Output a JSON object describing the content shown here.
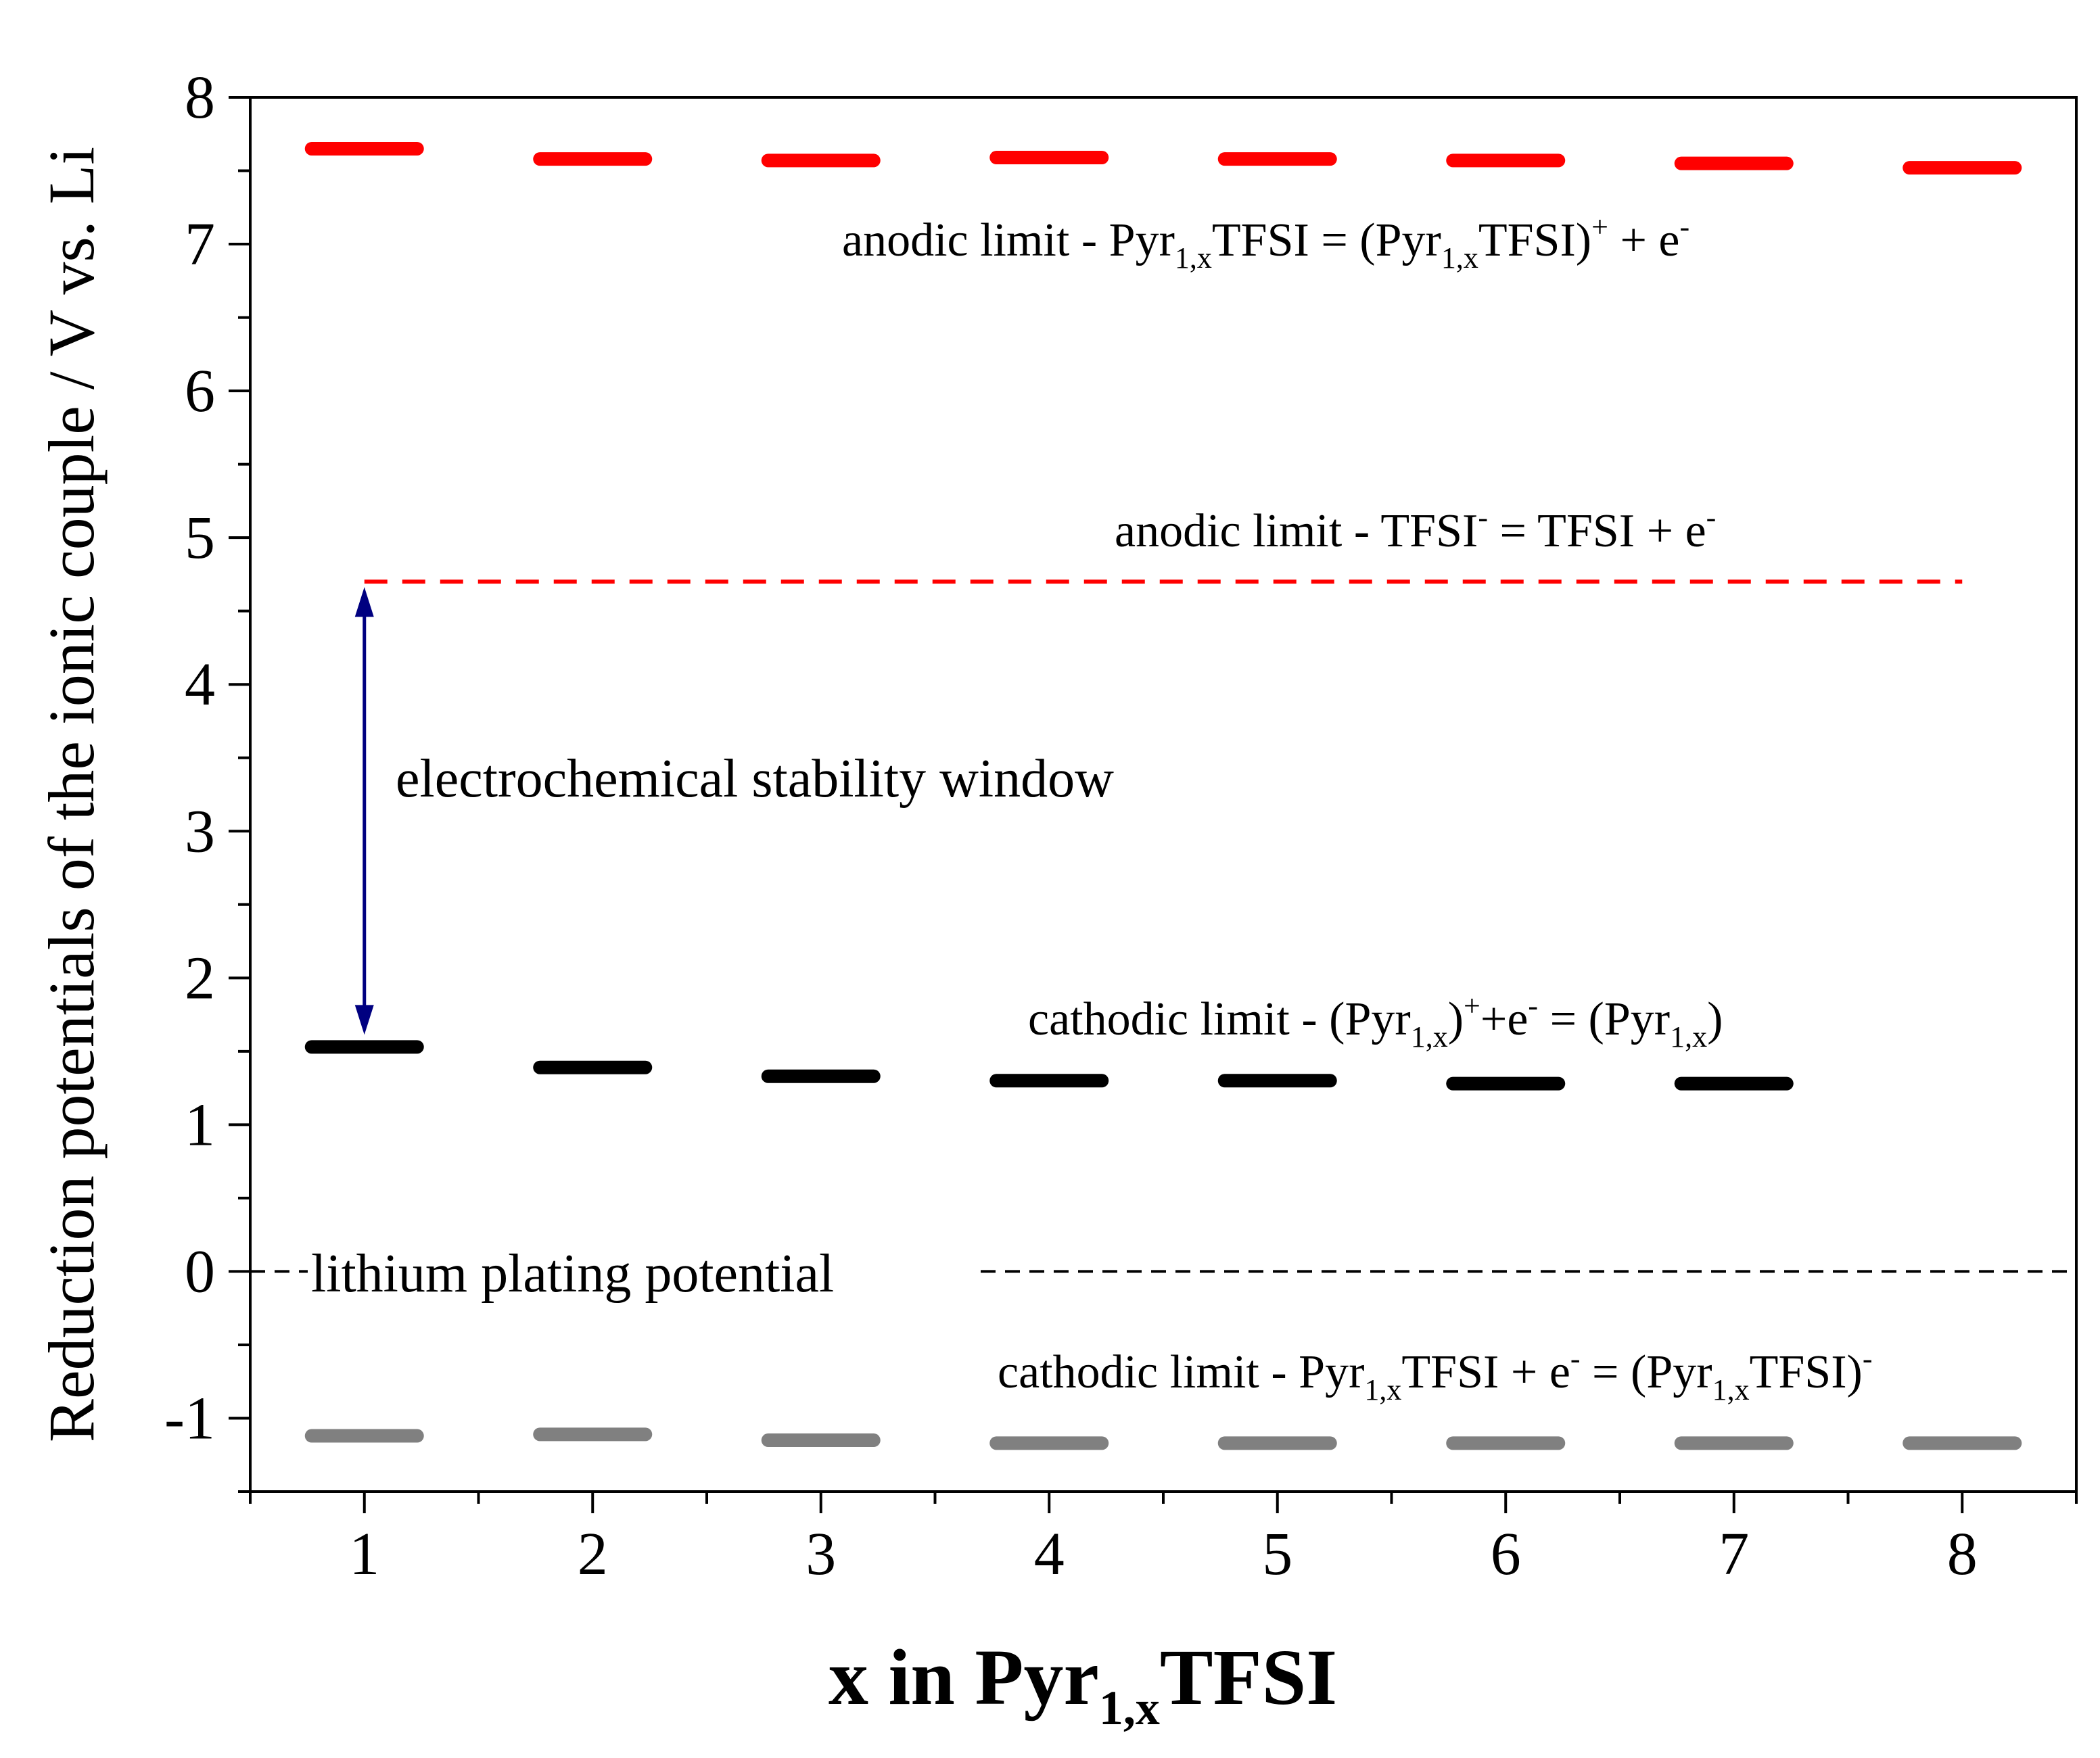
{
  "chart_data": {
    "type": "scatter",
    "marker": "horizontal-dash",
    "x_values": [
      1,
      2,
      3,
      4,
      5,
      6,
      7,
      8
    ],
    "xlim": [
      0.5,
      8.5
    ],
    "ylim": [
      -1.5,
      8
    ],
    "x_ticks": [
      "1",
      "2",
      "3",
      "4",
      "5",
      "6",
      "7",
      "8"
    ],
    "y_ticks": [
      "-1",
      "0",
      "1",
      "2",
      "3",
      "4",
      "5",
      "6",
      "7",
      "8"
    ],
    "xlabel": {
      "pre": "x in Pyr",
      "sub": "1,x",
      "post": "TFSI"
    },
    "ylabel": "Reduction potentials of the ionic couple  / V vs. Li",
    "series": [
      {
        "name": "anodic limit Pyr1,xTFSI",
        "color": "#ff0000",
        "x": [
          1,
          2,
          3,
          4,
          5,
          6,
          7,
          8
        ],
        "values": [
          7.65,
          7.58,
          7.57,
          7.59,
          7.58,
          7.57,
          7.55,
          7.52
        ]
      },
      {
        "name": "cathodic limit (Pyr1,x)+",
        "color": "#000000",
        "x": [
          1,
          2,
          3,
          4,
          5,
          6,
          7
        ],
        "values": [
          1.53,
          1.39,
          1.33,
          1.3,
          1.3,
          1.28,
          1.28
        ]
      },
      {
        "name": "cathodic limit Pyr1,xTFSI",
        "color": "#808080",
        "x": [
          1,
          2,
          3,
          4,
          5,
          6,
          7,
          8
        ],
        "values": [
          -1.12,
          -1.11,
          -1.15,
          -1.17,
          -1.17,
          -1.17,
          -1.17,
          -1.17
        ]
      }
    ],
    "reference_lines": [
      {
        "name": "anodic limit TFSI-",
        "value": 4.7,
        "x_range": [
          1,
          8
        ],
        "color": "#ff0000",
        "style": "dashed"
      },
      {
        "name": "lithium plating potential",
        "value": 0,
        "x_range": [
          0.5,
          8.5
        ],
        "color": "#000000",
        "style": "dashed"
      }
    ],
    "window_arrow": {
      "x": 1,
      "from": 1.53,
      "to": 4.7,
      "color": "#000080"
    },
    "annotations": {
      "anodic_pyr": {
        "a": "anodic limit - Pyr",
        "b": "1,x",
        "c": "TFSI = (Pyr",
        "d": "1,x",
        "e": "TFSI)",
        "f": "+",
        "g": " + e",
        "h": "-"
      },
      "anodic_tfsi": {
        "a": "anodic limit - TFSI",
        "b": "-",
        "c": " = TFSI + e",
        "d": "-"
      },
      "window": "electrochemical stability window",
      "cathodic_pyr": {
        "a": "cathodic limit - (Pyr",
        "b": "1,x",
        "c": ")",
        "d": "+",
        "e": "+e",
        "f": "-",
        "g": " = (Pyr",
        "h": "1,x",
        "i": ")"
      },
      "plating": "lithium plating potential",
      "cathodic_pyrtfsi": {
        "a": "cathodic limit - Pyr",
        "b": "1,x",
        "c": "TFSI + e",
        "d": "-",
        "e": " = (Pyr",
        "f": "1,x",
        "g": "TFSI)",
        "h": "-"
      }
    }
  }
}
